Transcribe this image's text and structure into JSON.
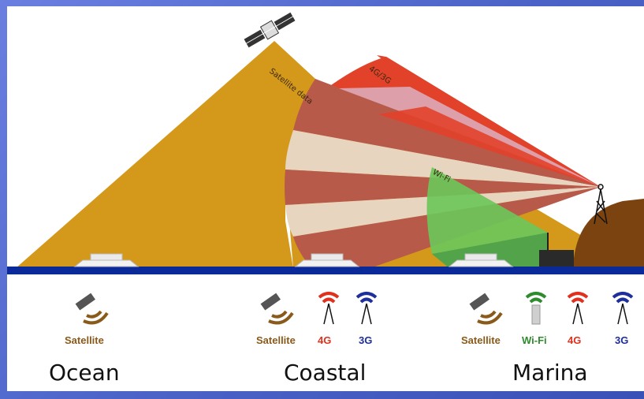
{
  "diagram": {
    "beam_labels": {
      "satellite": "Satellite data",
      "cellular": "4G/3G",
      "wifi": "Wi-Fi"
    },
    "zones": [
      {
        "name": "Ocean",
        "icons": [
          {
            "type": "satellite",
            "label": "Satellite"
          }
        ]
      },
      {
        "name": "Coastal",
        "icons": [
          {
            "type": "satellite",
            "label": "Satellite"
          },
          {
            "type": "4g",
            "label": "4G"
          },
          {
            "type": "3g",
            "label": "3G"
          }
        ]
      },
      {
        "name": "Marina",
        "icons": [
          {
            "type": "satellite",
            "label": "Satellite"
          },
          {
            "type": "wifi",
            "label": "Wi-Fi"
          },
          {
            "type": "4g",
            "label": "4G"
          },
          {
            "type": "3g",
            "label": "3G"
          }
        ]
      }
    ],
    "colors": {
      "satellite_beam": "#d4981a",
      "cellular_beam": "#e2412a",
      "wifi_beam": "#6cc65a",
      "sea": "#0a2a9a",
      "land": "#7a4310",
      "frame": "#5a6fd0"
    }
  }
}
